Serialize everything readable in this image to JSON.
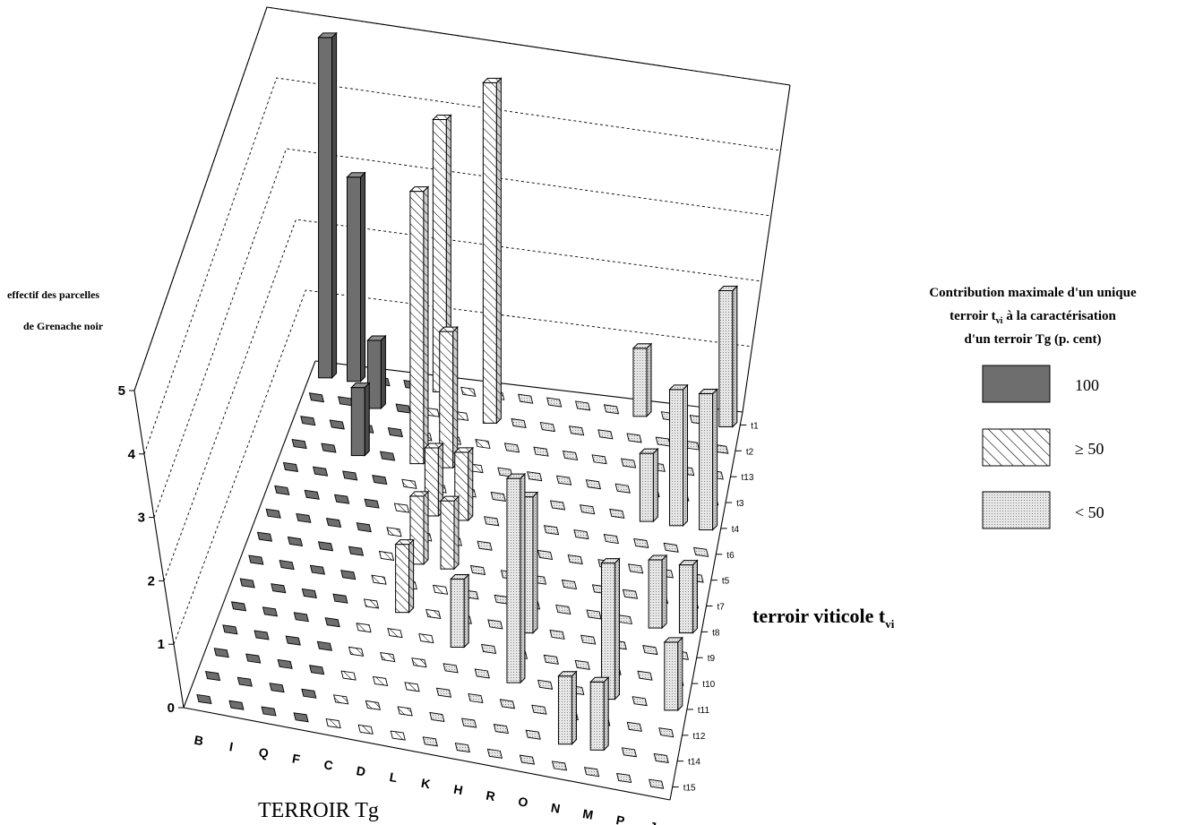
{
  "chart_data": {
    "type": "bar",
    "subtype": "3d-bar",
    "ylabel_lines": [
      "effectif des parcelles",
      "de Grenache noir"
    ],
    "xlabel": "TERROIR Tg",
    "zlabel": "terroir viticole t",
    "zlabel_sub": "vi",
    "ylim": [
      0,
      5
    ],
    "yticks": [
      "0",
      "1",
      "2",
      "3",
      "4",
      "5"
    ],
    "terroir_tg": [
      "B",
      "I",
      "Q",
      "F",
      "C",
      "D",
      "L",
      "K",
      "H",
      "R",
      "O",
      "N",
      "M",
      "P",
      "J"
    ],
    "terroir_tvi": [
      "t1",
      "t2",
      "t13",
      "t3",
      "t4",
      "t6",
      "t5",
      "t7",
      "t8",
      "t9",
      "t10",
      "t11",
      "t12",
      "t14",
      "t15"
    ],
    "bars": [
      {
        "tg": "B",
        "tvi": "t1",
        "value": 5,
        "category": "100"
      },
      {
        "tg": "I",
        "tvi": "t1",
        "value": 3,
        "category": "100"
      },
      {
        "tg": "Q",
        "tvi": "t2",
        "value": 1,
        "category": "100"
      },
      {
        "tg": "Q",
        "tvi": "t3",
        "value": 1,
        "category": "100"
      },
      {
        "tg": "C",
        "tvi": "t1",
        "value": 4,
        "category": ">= 50"
      },
      {
        "tg": "C",
        "tvi": "t3",
        "value": 4,
        "category": ">= 50"
      },
      {
        "tg": "D",
        "tvi": "t3",
        "value": 2,
        "category": ">= 50"
      },
      {
        "tg": "D",
        "tvi": "t6",
        "value": 1,
        "category": ">= 50"
      },
      {
        "tg": "D",
        "tvi": "t7",
        "value": 1,
        "category": ">= 50"
      },
      {
        "tg": "D",
        "tvi": "t9",
        "value": 1,
        "category": ">= 50"
      },
      {
        "tg": "L",
        "tvi": "t2",
        "value": 5,
        "category": ">= 50"
      },
      {
        "tg": "L",
        "tvi": "t6",
        "value": 1,
        "category": ">= 50"
      },
      {
        "tg": "L",
        "tvi": "t7",
        "value": 1,
        "category": ">= 50"
      },
      {
        "tg": "R",
        "tvi": "t9",
        "value": 2,
        "category": "< 50"
      },
      {
        "tg": "R",
        "tvi": "t11",
        "value": 3,
        "category": "< 50"
      },
      {
        "tg": "K",
        "tvi": "t10",
        "value": 1,
        "category": "< 50"
      },
      {
        "tg": "N",
        "tvi": "t1",
        "value": 1,
        "category": "< 50"
      },
      {
        "tg": "N",
        "tvi": "t14",
        "value": 1,
        "category": "< 50"
      },
      {
        "tg": "M",
        "tvi": "t4",
        "value": 1,
        "category": "< 50"
      },
      {
        "tg": "M",
        "tvi": "t14",
        "value": 1,
        "category": "< 50"
      },
      {
        "tg": "M",
        "tvi": "t11",
        "value": 2,
        "category": "< 50"
      },
      {
        "tg": "P",
        "tvi": "t4",
        "value": 2,
        "category": "< 50"
      },
      {
        "tg": "P",
        "tvi": "t8",
        "value": 1,
        "category": "< 50"
      },
      {
        "tg": "J",
        "tvi": "t1",
        "value": 2,
        "category": "< 50"
      },
      {
        "tg": "J",
        "tvi": "t4",
        "value": 2,
        "category": "< 50"
      },
      {
        "tg": "J",
        "tvi": "t8",
        "value": 1,
        "category": "< 50"
      },
      {
        "tg": "J",
        "tvi": "t11",
        "value": 1,
        "category": "< 50"
      }
    ],
    "legend": {
      "title_lines": [
        "Contribution maximale d'un unique",
        "terroir t",
        "à la caractérisation",
        "d'un terroir Tg (p. cent)"
      ],
      "title_sub": "vi",
      "entries": [
        {
          "label": "100",
          "pattern": "solid"
        },
        {
          "label": "≥ 50",
          "pattern": "hatch"
        },
        {
          "label": "< 50",
          "pattern": "dots"
        }
      ]
    },
    "colors": {
      "solid_face": "#6e6e6e",
      "solid_light": "#8f8f8f",
      "solid_dark": "#4a4a4a",
      "hatch_face": "#ffffff",
      "dots_face": "#e2e2e2"
    }
  }
}
